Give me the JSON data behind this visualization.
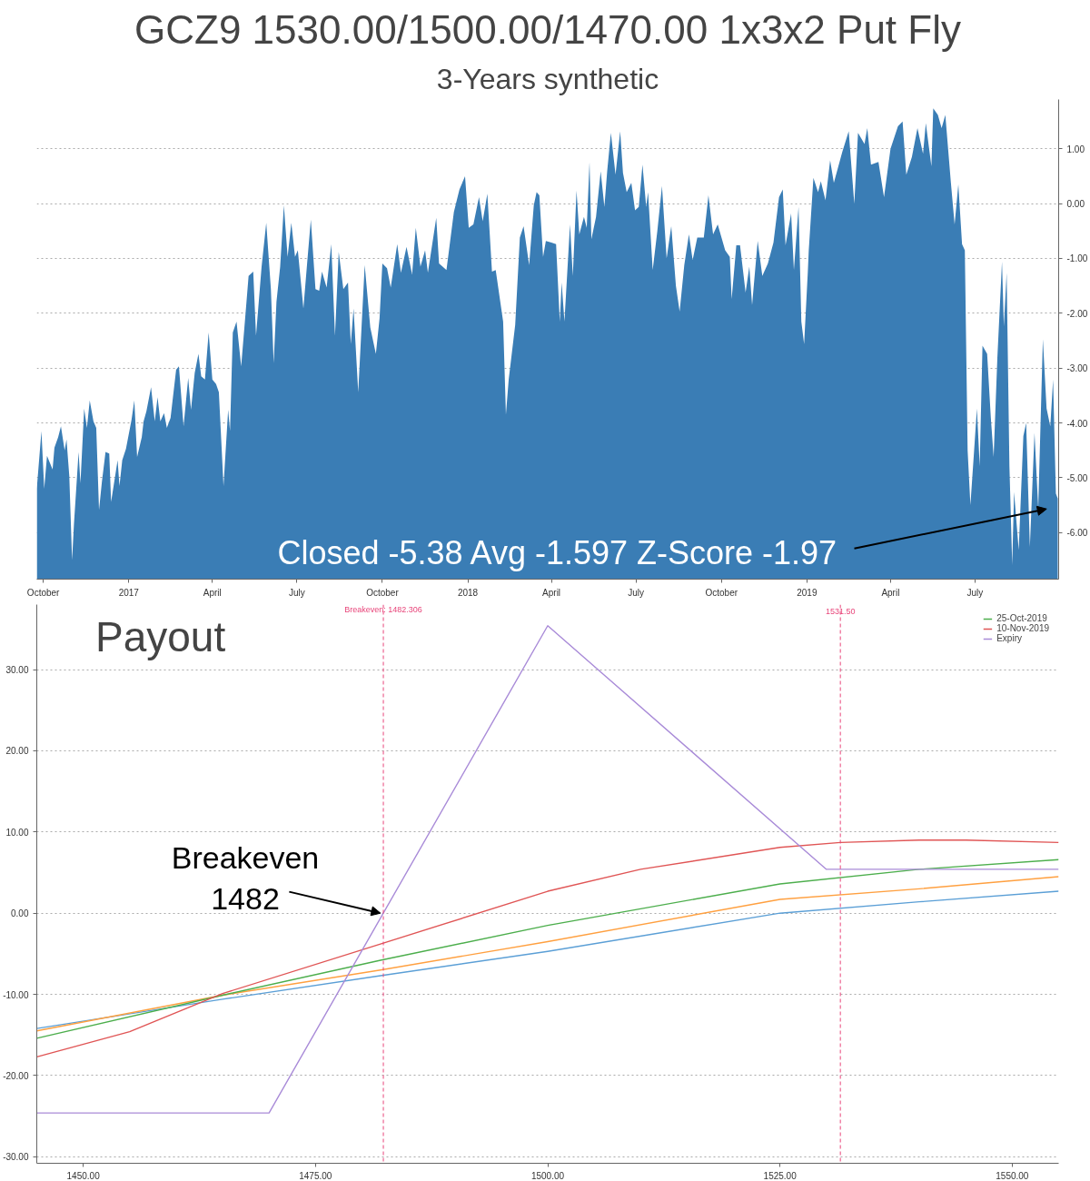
{
  "chart_data": [
    {
      "type": "area",
      "title": "GCZ9 1530.00/1500.00/1470.00 1x3x2 Put Fly",
      "subtitle": "3-Years synthetic",
      "x": [
        "2016-09-24",
        "2016-09-29",
        "2016-10-02",
        "2016-10-05",
        "2016-10-11",
        "2016-10-13",
        "2016-10-17",
        "2016-10-20",
        "2016-10-24",
        "2016-10-26",
        "2016-10-29",
        "2016-11-01",
        "2016-11-03",
        "2016-11-08",
        "2016-11-10",
        "2016-11-14",
        "2016-11-17",
        "2016-11-20",
        "2016-11-24",
        "2016-11-27",
        "2016-11-30",
        "2016-12-03",
        "2016-12-07",
        "2016-12-11",
        "2016-12-13",
        "2016-12-20",
        "2016-12-22",
        "2016-12-25",
        "2016-12-29",
        "2017-01-04",
        "2017-01-07",
        "2017-01-10",
        "2017-01-15",
        "2017-01-17",
        "2017-01-20",
        "2017-01-25",
        "2017-01-29",
        "2017-02-01",
        "2017-02-04",
        "2017-02-08",
        "2017-02-11",
        "2017-02-15",
        "2017-02-21",
        "2017-02-24",
        "2017-03-01",
        "2017-03-06",
        "2017-03-09",
        "2017-03-13",
        "2017-03-17",
        "2017-03-20",
        "2017-03-24",
        "2017-03-28",
        "2017-04-01",
        "2017-04-05",
        "2017-04-08",
        "2017-04-13",
        "2017-04-18",
        "2017-04-20",
        "2017-04-23",
        "2017-04-27",
        "2017-05-02",
        "2017-05-06",
        "2017-05-10",
        "2017-05-15",
        "2017-05-18",
        "2017-05-24",
        "2017-05-29",
        "2017-06-03",
        "2017-06-06",
        "2017-06-09",
        "2017-06-13",
        "2017-06-17",
        "2017-06-21",
        "2017-06-25",
        "2017-06-29",
        "2017-07-02",
        "2017-07-08",
        "2017-07-12",
        "2017-07-16",
        "2017-07-21",
        "2017-07-25",
        "2017-07-28",
        "2017-08-02",
        "2017-08-07",
        "2017-08-11",
        "2017-08-15",
        "2017-08-20",
        "2017-08-25",
        "2017-08-28",
        "2017-08-31",
        "2017-09-05",
        "2017-09-12",
        "2017-09-18",
        "2017-09-24",
        "2017-09-28",
        "2017-10-01",
        "2017-10-06",
        "2017-10-10",
        "2017-10-17",
        "2017-10-21",
        "2017-10-27",
        "2017-11-02",
        "2017-11-06",
        "2017-11-11",
        "2017-11-16",
        "2017-11-19",
        "2017-11-28",
        "2017-12-01",
        "2017-12-09",
        "2017-12-17",
        "2017-12-23",
        "2017-12-29",
        "2018-01-02",
        "2018-01-07",
        "2018-01-13",
        "2018-01-17",
        "2018-01-22",
        "2018-01-27",
        "2018-01-31",
        "2018-02-08",
        "2018-02-11",
        "2018-02-14",
        "2018-02-21",
        "2018-02-26",
        "2018-03-02",
        "2018-03-08",
        "2018-03-13",
        "2018-03-16",
        "2018-03-19",
        "2018-03-23",
        "2018-03-26",
        "2018-04-01",
        "2018-04-06",
        "2018-04-10",
        "2018-04-12",
        "2018-04-15",
        "2018-04-21",
        "2018-04-24",
        "2018-04-28",
        "2018-05-01",
        "2018-05-06",
        "2018-05-09",
        "2018-05-12",
        "2018-05-14",
        "2018-05-19",
        "2018-05-24",
        "2018-05-28",
        "2018-05-31",
        "2018-06-04",
        "2018-06-09",
        "2018-06-14",
        "2018-06-17",
        "2018-06-21",
        "2018-06-26",
        "2018-06-30",
        "2018-07-04",
        "2018-07-08",
        "2018-07-12",
        "2018-07-14",
        "2018-07-19",
        "2018-07-24",
        "2018-07-29",
        "2018-08-03",
        "2018-08-08",
        "2018-08-13",
        "2018-08-17",
        "2018-08-22",
        "2018-08-27",
        "2018-08-31",
        "2018-09-05",
        "2018-09-12",
        "2018-09-17",
        "2018-09-22",
        "2018-09-27",
        "2018-10-05",
        "2018-10-10",
        "2018-10-12",
        "2018-10-17",
        "2018-10-21",
        "2018-10-27",
        "2018-10-31",
        "2018-11-03",
        "2018-11-09",
        "2018-11-14",
        "2018-11-20",
        "2018-11-26",
        "2018-12-02",
        "2018-12-06",
        "2018-12-09",
        "2018-12-15",
        "2018-12-18",
        "2018-12-23",
        "2018-12-26",
        "2018-12-29",
        "2019-01-02",
        "2019-01-03",
        "2019-01-08",
        "2019-01-13",
        "2019-01-16",
        "2019-01-21",
        "2019-01-26",
        "2019-01-30",
        "2019-02-08",
        "2019-02-15",
        "2019-02-21",
        "2019-02-25",
        "2019-03-04",
        "2019-03-07",
        "2019-03-11",
        "2019-03-19",
        "2019-03-25",
        "2019-04-01",
        "2019-04-09",
        "2019-04-14",
        "2019-04-18",
        "2019-04-24",
        "2019-04-30",
        "2019-05-06",
        "2019-05-09",
        "2019-05-15",
        "2019-05-17",
        "2019-05-22",
        "2019-05-26",
        "2019-05-30",
        "2019-06-05",
        "2019-06-09",
        "2019-06-13",
        "2019-06-17",
        "2019-06-20",
        "2019-06-23",
        "2019-06-26",
        "2019-06-30",
        "2019-07-03",
        "2019-07-06",
        "2019-07-09",
        "2019-07-14",
        "2019-07-18",
        "2019-07-21",
        "2019-07-25",
        "2019-07-30",
        "2019-08-01",
        "2019-08-04",
        "2019-08-07",
        "2019-08-10",
        "2019-08-12",
        "2019-08-17",
        "2019-08-22",
        "2019-08-25",
        "2019-08-29",
        "2019-09-03",
        "2019-09-07",
        "2019-09-12",
        "2019-09-16",
        "2019-09-20",
        "2019-09-23",
        "2019-09-26",
        "2019-09-28"
      ],
      "series": [
        {
          "color": "#3a7db5",
          "values": [
            -5.2,
            -4.15,
            -5.2,
            -4.6,
            -4.85,
            -4.45,
            -4.26,
            -4.06,
            -4.5,
            -4.3,
            -4.97,
            -6.5,
            -5.85,
            -4.53,
            -5.1,
            -3.74,
            -4.09,
            -3.59,
            -3.97,
            -4.09,
            -5.59,
            -5.09,
            -4.53,
            -4.56,
            -5.44,
            -4.68,
            -5.15,
            -4.68,
            -4.47,
            -3.94,
            -3.59,
            -4.62,
            -4.26,
            -3.97,
            -3.79,
            -3.35,
            -3.97,
            -3.53,
            -3.97,
            -3.82,
            -4.09,
            -3.91,
            -3.03,
            -2.97,
            -4.06,
            -3.18,
            -3.76,
            -3.09,
            -2.74,
            -3.15,
            -3.21,
            -2.35,
            -3.21,
            -3.29,
            -3.44,
            -5.15,
            -3.76,
            -4.15,
            -2.35,
            -2.15,
            -2.97,
            -2.15,
            -1.32,
            -1.24,
            -2.41,
            -1.15,
            -0.35,
            -1.56,
            -2.91,
            -1.79,
            -1.15,
            -0.03,
            -0.97,
            -0.35,
            -0.97,
            -0.85,
            -1.91,
            -1.09,
            -0.29,
            -1.56,
            -1.59,
            -1.24,
            -1.53,
            -0.74,
            -2.41,
            -0.88,
            -1.56,
            -1.44,
            -2.56,
            -1.91,
            -3.44,
            -1.12,
            -2.26,
            -2.74,
            -2.09,
            -1.09,
            -1.18,
            -1.53,
            -0.74,
            -1.26,
            -0.79,
            -1.29,
            -0.44,
            -1.15,
            -0.85,
            -1.26,
            -0.26,
            -1.09,
            -1.21,
            -0.15,
            0.26,
            0.5,
            -0.44,
            -0.38,
            0.12,
            -0.32,
            0.18,
            -1.24,
            -1.21,
            -2.15,
            -3.85,
            -3.21,
            -2.21,
            -0.62,
            -0.41,
            -1.12,
            -0.03,
            0.21,
            0.15,
            -0.97,
            -0.68,
            -0.71,
            -0.74,
            -2.15,
            -1.44,
            -2.15,
            -0.38,
            -1.32,
            0.24,
            -0.56,
            -0.24,
            -0.44,
            0.76,
            -0.65,
            -0.24,
            0.59,
            -0.06,
            0.59,
            1.29,
            0.53,
            1.32,
            0.56,
            0.21,
            0.38,
            -0.12,
            -0.06,
            0.71,
            -0.06,
            0.21,
            -1.21,
            -0.5,
            0.32,
            -1.0,
            -0.41,
            -1.5,
            -1.97,
            -1.12,
            -0.56,
            -1.03,
            -0.62,
            -0.62,
            0.15,
            -0.56,
            -0.38,
            -0.85,
            -0.97,
            -1.74,
            -0.76,
            -0.76,
            -1.62,
            -1.15,
            -1.85,
            -0.68,
            -1.32,
            -1.09,
            -0.71,
            0.12,
            0.26,
            -0.76,
            -0.18,
            -1.21,
            -0.06,
            -2.15,
            -2.56,
            -1.24,
            -0.85,
            0.47,
            0.21,
            0.41,
            0.06,
            0.79,
            0.38,
            0.94,
            1.32,
            0.0,
            1.29,
            1.09,
            1.38,
            0.71,
            0.76,
            0.12,
            1.0,
            1.41,
            1.5,
            0.53,
            0.85,
            1.38,
            0.91,
            1.47,
            0.68,
            1.74,
            1.62,
            1.38,
            1.62,
            0.38,
            -0.38,
            0.35,
            -0.74,
            -0.85,
            -4.5,
            -5.5,
            -4.5,
            -3.74,
            -4.79,
            -2.59,
            -2.74,
            -3.91,
            -4.62,
            -2.82,
            -1.06,
            -2.24,
            -1.26,
            -4.79,
            -6.59,
            -5.26,
            -6.32,
            -4.24,
            -4.0,
            -6.26,
            -4.18,
            -5.56,
            -2.47,
            -3.74,
            -4.06,
            -3.21,
            -5.29,
            -5.38
          ]
        }
      ],
      "xlim": [
        "2016-09-24",
        "2019-09-29"
      ],
      "xticks": [
        {
          "value": "2016-10-01",
          "label": "October"
        },
        {
          "value": "2017-01-01",
          "label": "2017"
        },
        {
          "value": "2017-04-01",
          "label": "April"
        },
        {
          "value": "2017-07-01",
          "label": "July"
        },
        {
          "value": "2017-10-01",
          "label": "October"
        },
        {
          "value": "2018-01-01",
          "label": "2018"
        },
        {
          "value": "2018-04-01",
          "label": "April"
        },
        {
          "value": "2018-07-01",
          "label": "July"
        },
        {
          "value": "2018-10-01",
          "label": "October"
        },
        {
          "value": "2019-01-01",
          "label": "2019"
        },
        {
          "value": "2019-04-01",
          "label": "April"
        },
        {
          "value": "2019-07-01",
          "label": "July"
        }
      ],
      "ylim": [
        -6.85,
        1.9
      ],
      "yticks": [
        {
          "value": -6,
          "label": "-6.00"
        },
        {
          "value": -5,
          "label": "-5.00"
        },
        {
          "value": -4,
          "label": "-4.00"
        },
        {
          "value": -3,
          "label": "-3.00"
        },
        {
          "value": -2,
          "label": "-2.00"
        },
        {
          "value": -1,
          "label": "-1.00"
        },
        {
          "value": 0,
          "label": "0.00"
        },
        {
          "value": 1,
          "label": "1.00"
        }
      ],
      "grid": "y",
      "annotations": [
        {
          "text": "Closed -5.38 Avg -1.597 Z-Score -1.97",
          "x": "2019-09-16",
          "y": -5.57
        }
      ]
    },
    {
      "type": "line",
      "title": "Payout",
      "series": [
        {
          "color": "#5b9fd6",
          "x": [
            1445,
            1465,
            1482,
            1500,
            1525,
            1540,
            1555
          ],
          "values": [
            -14.2,
            -10.6,
            -7.7,
            -4.7,
            0.0,
            1.4,
            2.7
          ]
        },
        {
          "color": "#ffa040",
          "x": [
            1445,
            1465,
            1482,
            1500,
            1525,
            1540,
            1555
          ],
          "values": [
            -14.5,
            -10.1,
            -7.0,
            -3.5,
            1.7,
            3.0,
            4.5
          ]
        },
        {
          "name": "25-Oct-2019",
          "color": "#4cae4c",
          "x": [
            1445,
            1465,
            1482,
            1500,
            1525,
            1540,
            1555
          ],
          "values": [
            -15.4,
            -10.1,
            -5.8,
            -1.5,
            3.6,
            5.4,
            6.6
          ]
        },
        {
          "name": "10-Nov-2019",
          "color": "#e05555",
          "x": [
            1445,
            1455,
            1465,
            1482,
            1500,
            1510,
            1525,
            1531.5,
            1540,
            1545,
            1555
          ],
          "values": [
            -17.7,
            -14.6,
            -9.9,
            -3.8,
            2.7,
            5.4,
            8.1,
            8.7,
            9.0,
            9.0,
            8.7
          ]
        },
        {
          "name": "Expiry",
          "color": "#a98bd8",
          "x": [
            1445,
            1470,
            1500,
            1530,
            1555
          ],
          "values": [
            -24.6,
            -24.6,
            35.4,
            5.4,
            5.4
          ]
        }
      ],
      "xlim": [
        1445,
        1555
      ],
      "xticks": [
        {
          "value": 1450,
          "label": "1450.00"
        },
        {
          "value": 1475,
          "label": "1475.00"
        },
        {
          "value": 1500,
          "label": "1500.00"
        },
        {
          "value": 1525,
          "label": "1525.00"
        },
        {
          "value": 1550,
          "label": "1550.00"
        }
      ],
      "ylim": [
        -30.8,
        38
      ],
      "yticks": [
        {
          "value": -30,
          "label": "-30.00"
        },
        {
          "value": -20,
          "label": "-20.00"
        },
        {
          "value": -10,
          "label": "-10.00"
        },
        {
          "value": 0,
          "label": "0.00"
        },
        {
          "value": 10,
          "label": "10.00"
        },
        {
          "value": 20,
          "label": "20.00"
        },
        {
          "value": 30,
          "label": "30.00"
        }
      ],
      "grid": "y",
      "legend": "top right",
      "ref_lines": [
        {
          "axis": "x",
          "value": 1482.306,
          "label": "Breakeven: 1482.306",
          "color": "#e8457a",
          "line_style": "dashed"
        },
        {
          "axis": "x",
          "value": 1531.5,
          "label": "1531.50",
          "color": "#e8457a",
          "line_style": "dashed"
        }
      ],
      "annotations": [
        {
          "text": "Breakeven\n1482",
          "x": 1482,
          "y": 0
        }
      ]
    }
  ]
}
